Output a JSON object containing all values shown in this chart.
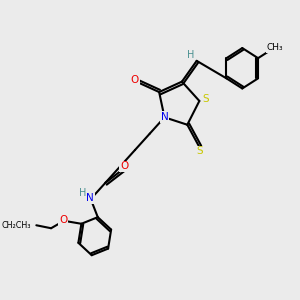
{
  "bg_color": "#ebebeb",
  "atom_colors": {
    "C": "#000000",
    "H": "#4a9090",
    "N": "#0000ee",
    "O": "#ee0000",
    "S": "#c8c800"
  },
  "bond_color": "#000000",
  "lw": 1.5
}
